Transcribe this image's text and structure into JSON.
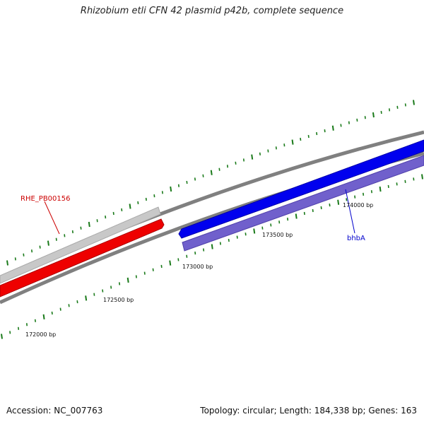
{
  "title": "Rhizobium etli CFN 42 plasmid p42b, complete sequence",
  "accession": "Accession: NC_007763",
  "summary": "Topology: circular; Length: 184,338 bp; Genes: 163",
  "ticks": [
    {
      "label": "172000 bp"
    },
    {
      "label": "172500 bp"
    },
    {
      "label": "173000 bp"
    },
    {
      "label": "173500 bp"
    },
    {
      "label": "174000 bp"
    }
  ],
  "genes": [
    {
      "name": "RHE_PB00156",
      "color": "#cc0000"
    },
    {
      "name": "bhbA",
      "color": "#0000cc"
    }
  ],
  "colors": {
    "tick": "#1a7a1a",
    "backbone": "#808080",
    "gray_feature": "#c8c8c8",
    "red_feature": "#ee0000",
    "blue_feature": "#0000ee",
    "purple_feature": "#7060cc"
  }
}
